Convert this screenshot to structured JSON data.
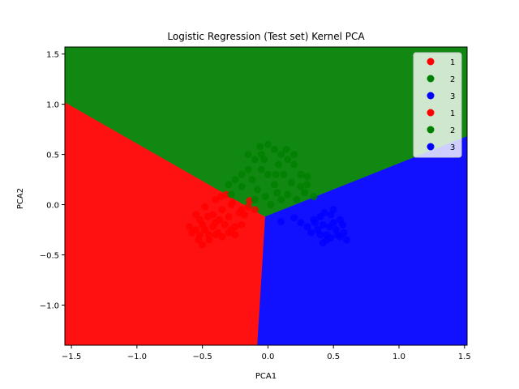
{
  "chart_data": {
    "type": "scatter",
    "title": "Logistic Regression (Test set) Kernel PCA",
    "xlabel": "PCA1",
    "ylabel": "PCA2",
    "xlim": [
      -1.55,
      1.52
    ],
    "ylim": [
      -1.4,
      1.57
    ],
    "xticks": [
      -1.5,
      -1.0,
      -0.5,
      0.0,
      0.5,
      1.0,
      1.5
    ],
    "xtick_labels": [
      "−1.5",
      "−1.0",
      "−0.5",
      "0.0",
      "0.5",
      "1.0",
      "1.5"
    ],
    "yticks": [
      -1.0,
      -0.5,
      0.0,
      0.5,
      1.0,
      1.5
    ],
    "ytick_labels": [
      "−1.0",
      "−0.5",
      "0.0",
      "0.5",
      "1.0",
      "1.5"
    ],
    "grid": false,
    "legend_position": "top-right",
    "regions": [
      {
        "name": "1",
        "color": "#ff1111",
        "polygon": [
          [
            -1.55,
            1.02
          ],
          [
            -0.02,
            -0.12
          ],
          [
            -0.08,
            -1.4
          ],
          [
            -1.55,
            -1.4
          ]
        ]
      },
      {
        "name": "2",
        "color": "#118811",
        "polygon": [
          [
            -1.55,
            1.57
          ],
          [
            1.52,
            1.57
          ],
          [
            1.52,
            0.68
          ],
          [
            -0.02,
            -0.12
          ],
          [
            -1.55,
            1.02
          ]
        ]
      },
      {
        "name": "3",
        "color": "#1111ff",
        "polygon": [
          [
            -0.02,
            -0.12
          ],
          [
            1.52,
            0.68
          ],
          [
            1.52,
            -1.4
          ],
          [
            -0.08,
            -1.4
          ]
        ]
      }
    ],
    "legend": [
      {
        "label": "1",
        "color": "#ff0000"
      },
      {
        "label": "2",
        "color": "#008000"
      },
      {
        "label": "3",
        "color": "#0000ff"
      },
      {
        "label": "1",
        "color": "#ff0000"
      },
      {
        "label": "2",
        "color": "#008000"
      },
      {
        "label": "3",
        "color": "#0000ff"
      }
    ],
    "series": [
      {
        "name": "1",
        "color": "#ff0000",
        "points": [
          [
            -0.55,
            -0.1
          ],
          [
            -0.52,
            -0.15
          ],
          [
            -0.5,
            -0.2
          ],
          [
            -0.48,
            -0.25
          ],
          [
            -0.45,
            -0.3
          ],
          [
            -0.42,
            -0.22
          ],
          [
            -0.4,
            -0.18
          ],
          [
            -0.38,
            -0.28
          ],
          [
            -0.35,
            -0.32
          ],
          [
            -0.33,
            -0.2
          ],
          [
            -0.3,
            -0.12
          ],
          [
            -0.28,
            -0.25
          ],
          [
            -0.25,
            -0.22
          ],
          [
            -0.22,
            -0.08
          ],
          [
            -0.2,
            -0.05
          ],
          [
            -0.18,
            -0.1
          ],
          [
            -0.15,
            -0.02
          ],
          [
            -0.55,
            -0.25
          ],
          [
            -0.58,
            -0.28
          ],
          [
            -0.6,
            -0.22
          ],
          [
            -0.53,
            -0.35
          ],
          [
            -0.5,
            -0.4
          ],
          [
            -0.45,
            -0.35
          ],
          [
            -0.42,
            -0.1
          ],
          [
            -0.4,
            0.05
          ],
          [
            -0.36,
            0.08
          ],
          [
            -0.32,
            0.1
          ],
          [
            -0.28,
            0.0
          ],
          [
            -0.25,
            -0.3
          ],
          [
            -0.35,
            -0.05
          ],
          [
            -0.46,
            -0.12
          ],
          [
            -0.52,
            -0.3
          ],
          [
            -0.48,
            -0.02
          ],
          [
            -0.3,
            -0.28
          ],
          [
            -0.2,
            -0.2
          ],
          [
            -0.1,
            -0.05
          ],
          [
            -0.14,
            0.04
          ],
          [
            -0.4,
            -0.3
          ],
          [
            -0.37,
            -0.15
          ],
          [
            -0.27,
            0.02
          ]
        ]
      },
      {
        "name": "2",
        "color": "#008000",
        "points": [
          [
            0.0,
            0.6
          ],
          [
            0.05,
            0.55
          ],
          [
            0.1,
            0.5
          ],
          [
            -0.05,
            0.5
          ],
          [
            -0.1,
            0.45
          ],
          [
            -0.15,
            0.35
          ],
          [
            -0.2,
            0.3
          ],
          [
            -0.25,
            0.25
          ],
          [
            -0.3,
            0.2
          ],
          [
            0.15,
            0.45
          ],
          [
            0.2,
            0.4
          ],
          [
            0.25,
            0.3
          ],
          [
            0.3,
            0.2
          ],
          [
            0.28,
            0.12
          ],
          [
            0.22,
            0.05
          ],
          [
            0.15,
            0.1
          ],
          [
            0.05,
            0.2
          ],
          [
            0.0,
            0.3
          ],
          [
            -0.05,
            0.35
          ],
          [
            0.08,
            0.4
          ],
          [
            0.12,
            0.3
          ],
          [
            -0.08,
            0.15
          ],
          [
            -0.02,
            0.08
          ],
          [
            0.02,
            0.0
          ],
          [
            0.1,
            0.05
          ],
          [
            0.18,
            0.22
          ],
          [
            -0.12,
            0.25
          ],
          [
            -0.2,
            0.18
          ],
          [
            0.06,
            0.3
          ],
          [
            -0.03,
            0.45
          ],
          [
            0.2,
            0.5
          ],
          [
            -0.15,
            0.5
          ],
          [
            0.25,
            0.18
          ],
          [
            0.3,
            0.28
          ],
          [
            -0.28,
            0.1
          ],
          [
            0.35,
            0.08
          ],
          [
            -0.1,
            0.05
          ],
          [
            0.07,
            0.12
          ],
          [
            0.14,
            0.55
          ],
          [
            -0.06,
            0.58
          ]
        ]
      },
      {
        "name": "3",
        "color": "#0000ff",
        "points": [
          [
            0.1,
            -0.17
          ],
          [
            0.2,
            -0.13
          ],
          [
            0.25,
            -0.18
          ],
          [
            0.3,
            -0.22
          ],
          [
            0.35,
            -0.15
          ],
          [
            0.38,
            -0.25
          ],
          [
            0.4,
            -0.12
          ],
          [
            0.42,
            -0.2
          ],
          [
            0.45,
            -0.3
          ],
          [
            0.48,
            -0.1
          ],
          [
            0.5,
            -0.18
          ],
          [
            0.52,
            -0.25
          ],
          [
            0.55,
            -0.32
          ],
          [
            0.58,
            -0.28
          ],
          [
            0.6,
            -0.35
          ],
          [
            0.45,
            -0.35
          ],
          [
            0.4,
            -0.3
          ],
          [
            0.33,
            -0.28
          ],
          [
            0.5,
            -0.05
          ],
          [
            0.55,
            -0.15
          ],
          [
            0.47,
            -0.22
          ],
          [
            0.43,
            -0.08
          ],
          [
            0.36,
            -0.18
          ],
          [
            0.53,
            -0.3
          ],
          [
            0.57,
            -0.2
          ],
          [
            0.42,
            -0.38
          ],
          [
            0.48,
            -0.33
          ]
        ]
      }
    ]
  }
}
